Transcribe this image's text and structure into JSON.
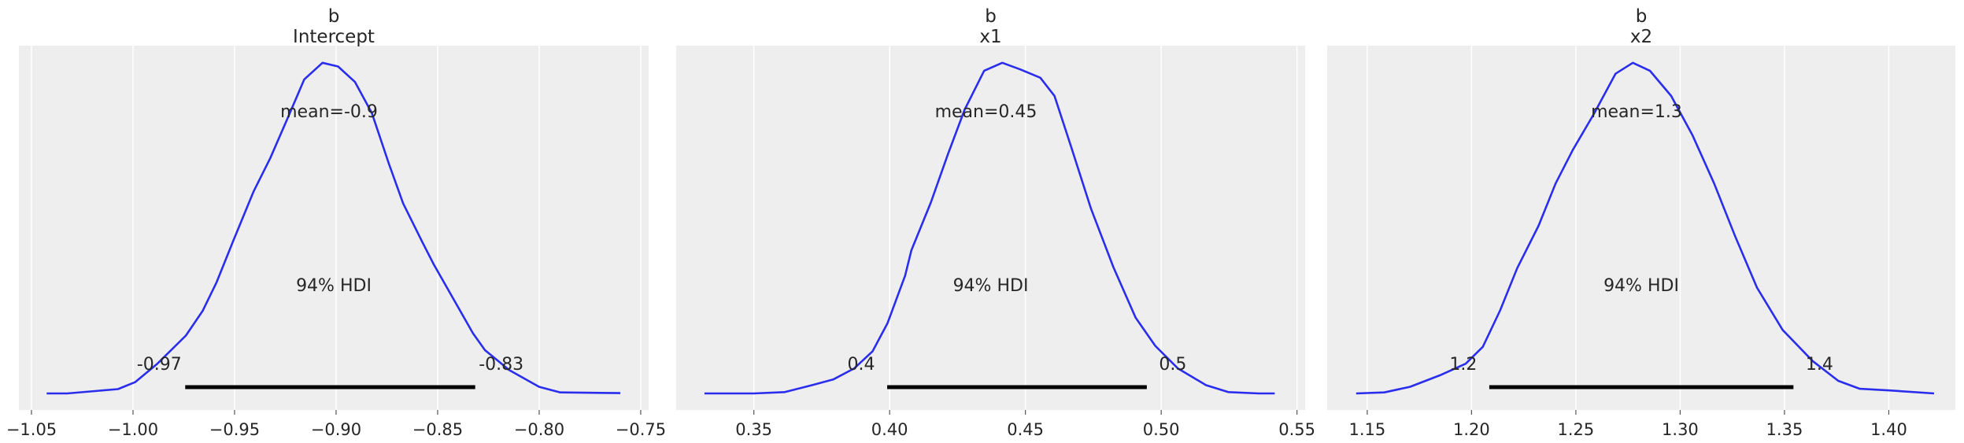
{
  "colors": {
    "background": "#eeeeee",
    "grid": "#ffffff",
    "density": "#2a2eec",
    "hdi_bar": "#000000",
    "text": "#262626"
  },
  "chart_data": [
    {
      "type": "line",
      "title": [
        "b",
        "Intercept"
      ],
      "xlim": [
        -1.0562,
        -0.7461
      ],
      "ylim": [
        -0.05,
        1.052
      ],
      "grid": true,
      "xticks": [
        -1.05,
        -1.0,
        -0.95,
        -0.9,
        -0.85,
        -0.8,
        -0.75
      ],
      "xtick_labels": [
        "−1.05",
        "−1.00",
        "−0.95",
        "−0.90",
        "−0.85",
        "−0.80",
        "−0.75"
      ],
      "mean_label": "mean=-0.9",
      "hdi_label": "94% HDI",
      "hdi": [
        -0.9743,
        -0.8315
      ],
      "hdi_labels": [
        "-0.97",
        "-0.83"
      ],
      "density": {
        "x": [
          -1.0425,
          -1.0324,
          -1.0074,
          -0.999,
          -0.988,
          -0.974,
          -0.9657,
          -0.9588,
          -0.9504,
          -0.9407,
          -0.9324,
          -0.924,
          -0.9157,
          -0.9067,
          -0.899,
          -0.8907,
          -0.8824,
          -0.874,
          -0.867,
          -0.8574,
          -0.8519,
          -0.8326,
          -0.8267,
          -0.8148,
          -0.8,
          -0.7896,
          -0.76
        ],
        "y": [
          0,
          0,
          0.013,
          0.034,
          0.09,
          0.175,
          0.25,
          0.337,
          0.465,
          0.61,
          0.712,
          0.831,
          0.95,
          1.0,
          0.989,
          0.942,
          0.848,
          0.695,
          0.575,
          0.456,
          0.39,
          0.182,
          0.131,
          0.071,
          0.02,
          0.003,
          0.001
        ]
      }
    },
    {
      "type": "line",
      "title": [
        "b",
        "x1"
      ],
      "xlim": [
        0.3214,
        0.553
      ],
      "ylim": [
        -0.05,
        1.052
      ],
      "grid": true,
      "xticks": [
        0.35,
        0.4,
        0.45,
        0.5,
        0.55
      ],
      "xtick_labels": [
        "0.35",
        "0.40",
        "0.45",
        "0.50",
        "0.55"
      ],
      "mean_label": "mean=0.45",
      "hdi_label": "94% HDI",
      "hdi": [
        0.3991,
        0.4947
      ],
      "hdi_labels": [
        "0.4",
        "0.5"
      ],
      "density": {
        "x": [
          0.3318,
          0.35,
          0.3614,
          0.3714,
          0.3792,
          0.387,
          0.3937,
          0.3992,
          0.4057,
          0.408,
          0.4152,
          0.4214,
          0.4276,
          0.4348,
          0.4415,
          0.4482,
          0.4555,
          0.4607,
          0.4668,
          0.4741,
          0.4824,
          0.4906,
          0.4978,
          0.5061,
          0.5165,
          0.5247,
          0.5359,
          0.5418
        ],
        "y": [
          0,
          0,
          0.004,
          0.025,
          0.042,
          0.076,
          0.127,
          0.212,
          0.356,
          0.433,
          0.578,
          0.722,
          0.858,
          0.976,
          1.0,
          0.98,
          0.955,
          0.9,
          0.747,
          0.56,
          0.382,
          0.229,
          0.144,
          0.076,
          0.025,
          0.004,
          0,
          0
        ]
      }
    },
    {
      "type": "line",
      "title": [
        "b",
        "x2"
      ],
      "xlim": [
        1.1308,
        1.4319
      ],
      "ylim": [
        -0.05,
        1.052
      ],
      "grid": true,
      "xticks": [
        1.15,
        1.2,
        1.25,
        1.3,
        1.35,
        1.4
      ],
      "xtick_labels": [
        "1.15",
        "1.20",
        "1.25",
        "1.30",
        "1.35",
        "1.40"
      ],
      "mean_label": "mean=1.3",
      "hdi_label": "94% HDI",
      "hdi": [
        1.2085,
        1.3543
      ],
      "hdi_labels": [
        "1.2",
        "1.4"
      ],
      "density": {
        "x": [
          1.1447,
          1.1582,
          1.1705,
          1.1849,
          1.1972,
          1.2054,
          1.2137,
          1.2219,
          1.2321,
          1.2403,
          1.2485,
          1.2588,
          1.269,
          1.2773,
          1.2855,
          1.2957,
          1.306,
          1.3163,
          1.3265,
          1.3368,
          1.3491,
          1.3635,
          1.3758,
          1.3861,
          1.4004,
          1.4217
        ],
        "y": [
          0,
          0.003,
          0.02,
          0.055,
          0.09,
          0.141,
          0.251,
          0.379,
          0.507,
          0.635,
          0.736,
          0.847,
          0.967,
          1.0,
          0.976,
          0.9,
          0.78,
          0.635,
          0.473,
          0.32,
          0.192,
          0.098,
          0.038,
          0.014,
          0.009,
          0
        ]
      }
    }
  ]
}
